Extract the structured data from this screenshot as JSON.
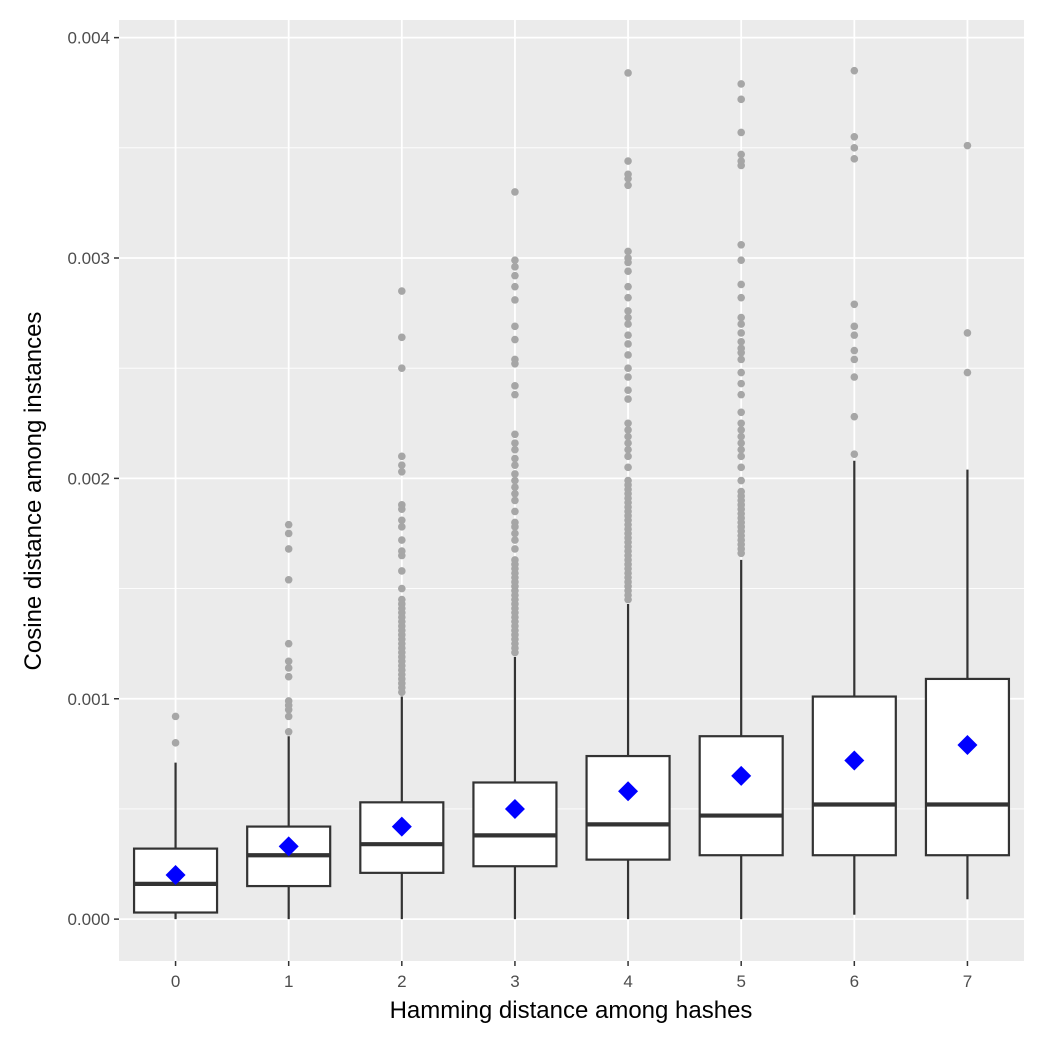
{
  "chart_data": {
    "type": "box",
    "title": "",
    "xlabel": "Hamming distance among hashes",
    "ylabel": "Cosine distance among instances",
    "categories": [
      "0",
      "1",
      "2",
      "3",
      "4",
      "5",
      "6",
      "7"
    ],
    "ylim": [
      -0.00019,
      0.00408
    ],
    "yticks": [
      0.0,
      0.001,
      0.002,
      0.003,
      0.004
    ],
    "ytick_labels": [
      "0.000",
      "0.001",
      "0.002",
      "0.003",
      "0.004"
    ],
    "grid": true,
    "legend": "none",
    "colors": {
      "panel": "#ebebeb",
      "grid": "#ffffff",
      "box_outline": "#333333",
      "box_fill": "#ffffff",
      "outlier": "#a6a6a6",
      "mean_marker": "#0000ff"
    },
    "boxes": [
      {
        "category": "0",
        "whisker_low": 0.0,
        "q1": 3e-05,
        "median": 0.00016,
        "q3": 0.00032,
        "whisker_high": 0.00071,
        "mean": 0.0002,
        "outliers": [
          0.0008,
          0.00092
        ]
      },
      {
        "category": "1",
        "whisker_low": 0.0,
        "q1": 0.00015,
        "median": 0.00029,
        "q3": 0.00042,
        "whisker_high": 0.00083,
        "mean": 0.00033,
        "outliers": [
          0.00085,
          0.00092,
          0.00095,
          0.00097,
          0.00099,
          0.0011,
          0.00114,
          0.00117,
          0.00125,
          0.00154,
          0.00168,
          0.00175,
          0.00179
        ]
      },
      {
        "category": "2",
        "whisker_low": 0.0,
        "q1": 0.00021,
        "median": 0.00034,
        "q3": 0.00053,
        "whisker_high": 0.00101,
        "mean": 0.00042,
        "outliers": [
          0.00103,
          0.00105,
          0.00107,
          0.00109,
          0.00111,
          0.00113,
          0.00115,
          0.00117,
          0.00119,
          0.00121,
          0.00123,
          0.00125,
          0.00127,
          0.00129,
          0.00131,
          0.00133,
          0.00135,
          0.00137,
          0.00139,
          0.00141,
          0.00143,
          0.00145,
          0.0015,
          0.00158,
          0.00165,
          0.00167,
          0.00172,
          0.00178,
          0.00181,
          0.00186,
          0.00188,
          0.00203,
          0.00206,
          0.0021,
          0.0025,
          0.00264,
          0.00285
        ]
      },
      {
        "category": "3",
        "whisker_low": 0.0,
        "q1": 0.00024,
        "median": 0.00038,
        "q3": 0.00062,
        "whisker_high": 0.00119,
        "mean": 0.0005,
        "outliers": [
          0.00121,
          0.00123,
          0.00125,
          0.00127,
          0.00129,
          0.00131,
          0.00133,
          0.00135,
          0.00137,
          0.00139,
          0.00141,
          0.00143,
          0.00145,
          0.00147,
          0.00149,
          0.00151,
          0.00153,
          0.00155,
          0.00157,
          0.00159,
          0.00161,
          0.00163,
          0.00168,
          0.00172,
          0.00175,
          0.00178,
          0.0018,
          0.00185,
          0.0019,
          0.00193,
          0.00196,
          0.00199,
          0.00202,
          0.00206,
          0.00209,
          0.00213,
          0.00216,
          0.0022,
          0.00238,
          0.00242,
          0.00252,
          0.00254,
          0.00263,
          0.00269,
          0.00281,
          0.00287,
          0.00292,
          0.00296,
          0.00299,
          0.0033
        ]
      },
      {
        "category": "4",
        "whisker_low": 0.0,
        "q1": 0.00027,
        "median": 0.00043,
        "q3": 0.00074,
        "whisker_high": 0.00143,
        "mean": 0.00058,
        "outliers": [
          0.00145,
          0.00147,
          0.00149,
          0.00151,
          0.00153,
          0.00155,
          0.00157,
          0.00159,
          0.00161,
          0.00163,
          0.00165,
          0.00167,
          0.00169,
          0.00171,
          0.00173,
          0.00175,
          0.00177,
          0.00179,
          0.00181,
          0.00183,
          0.00185,
          0.00187,
          0.00189,
          0.00191,
          0.00193,
          0.00195,
          0.00197,
          0.00199,
          0.00205,
          0.0021,
          0.00213,
          0.00216,
          0.00219,
          0.00222,
          0.00225,
          0.00236,
          0.0024,
          0.00246,
          0.0025,
          0.00256,
          0.00261,
          0.00265,
          0.0027,
          0.00273,
          0.00276,
          0.00282,
          0.00287,
          0.00294,
          0.00298,
          0.003,
          0.00303,
          0.00333,
          0.00336,
          0.00338,
          0.00344,
          0.00384
        ]
      },
      {
        "category": "5",
        "whisker_low": 0.0,
        "q1": 0.00029,
        "median": 0.00047,
        "q3": 0.00083,
        "whisker_high": 0.00163,
        "mean": 0.00065,
        "outliers": [
          0.00166,
          0.00168,
          0.0017,
          0.00172,
          0.00174,
          0.00176,
          0.00178,
          0.0018,
          0.00182,
          0.00184,
          0.00186,
          0.00188,
          0.0019,
          0.00192,
          0.00194,
          0.00199,
          0.00205,
          0.0021,
          0.00213,
          0.00216,
          0.00219,
          0.00222,
          0.00225,
          0.0023,
          0.00238,
          0.00243,
          0.00248,
          0.00254,
          0.00257,
          0.00259,
          0.00262,
          0.00266,
          0.0027,
          0.00273,
          0.00282,
          0.00288,
          0.00299,
          0.00306,
          0.00342,
          0.00344,
          0.00347,
          0.00357,
          0.00372,
          0.00379
        ]
      },
      {
        "category": "6",
        "whisker_low": 2e-05,
        "q1": 0.00029,
        "median": 0.00052,
        "q3": 0.00101,
        "whisker_high": 0.00208,
        "mean": 0.00072,
        "outliers": [
          0.00211,
          0.00228,
          0.00246,
          0.00254,
          0.00258,
          0.00265,
          0.00269,
          0.00279,
          0.00345,
          0.0035,
          0.00355,
          0.00385
        ]
      },
      {
        "category": "7",
        "whisker_low": 9e-05,
        "q1": 0.00029,
        "median": 0.00052,
        "q3": 0.00109,
        "whisker_high": 0.00204,
        "mean": 0.00079,
        "outliers": [
          0.00248,
          0.00266,
          0.00351
        ]
      }
    ]
  }
}
